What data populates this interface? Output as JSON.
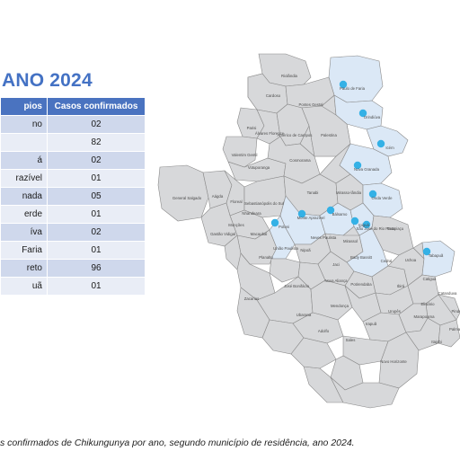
{
  "title": "ANO 2024",
  "table": {
    "headers": [
      "pios",
      "Casos confirmados"
    ],
    "rows": [
      {
        "municipio": "no",
        "casos": "02"
      },
      {
        "municipio": "",
        "casos": "82"
      },
      {
        "municipio": "á",
        "casos": "02"
      },
      {
        "municipio": "razível",
        "casos": "01"
      },
      {
        "municipio": "nada",
        "casos": "05"
      },
      {
        "municipio": "erde",
        "casos": "01"
      },
      {
        "municipio": "íva",
        "casos": "02"
      },
      {
        "municipio": "Faria",
        "casos": "01"
      },
      {
        "municipio": "reto",
        "casos": "96"
      },
      {
        "municipio": "uã",
        "casos": "01"
      }
    ]
  },
  "map": {
    "fill_color": "#d7d8da",
    "highlight_color": "#dbe8f6",
    "dot_color": "#34b1e6",
    "municipalities": [
      {
        "id": "riolandia",
        "label": "Riolândia",
        "highlighted": false
      },
      {
        "id": "paulo-de-faria",
        "label": "Paulo de Faria",
        "highlighted": true
      },
      {
        "id": "cardoso",
        "label": "Cardoso",
        "highlighted": false
      },
      {
        "id": "pontes-gestal",
        "label": "Pontes Gestal",
        "highlighted": false
      },
      {
        "id": "orindiuva",
        "label": "Orindiúva",
        "highlighted": true
      },
      {
        "id": "paris",
        "label": "Parisi",
        "highlighted": false
      },
      {
        "id": "alvares-florence",
        "label": "Álvares Florence",
        "highlighted": false
      },
      {
        "id": "americo-de-campos",
        "label": "Américo de Campos",
        "highlighted": false
      },
      {
        "id": "palestina",
        "label": "Palestina",
        "highlighted": false
      },
      {
        "id": "icem",
        "label": "Icém",
        "highlighted": true
      },
      {
        "id": "valentim-gentil",
        "label": "Valentim Gentil",
        "highlighted": false
      },
      {
        "id": "votuporanga",
        "label": "Votuporanga",
        "highlighted": false
      },
      {
        "id": "cosmorama",
        "label": "Cosmorama",
        "highlighted": false
      },
      {
        "id": "nova-granada",
        "label": "Nova Granada",
        "highlighted": true
      },
      {
        "id": "general-salgado",
        "label": "General Salgado",
        "highlighted": false
      },
      {
        "id": "auriflama",
        "label": "Aágda",
        "highlighted": false
      },
      {
        "id": "floreal",
        "label": "Floreal",
        "highlighted": false
      },
      {
        "id": "sebastianopolis",
        "label": "Sebastianópolis do Sul",
        "highlighted": false
      },
      {
        "id": "tanabi",
        "label": "Tanabi",
        "highlighted": false
      },
      {
        "id": "mirassolandia",
        "label": "Mirasso-lândia",
        "highlighted": false
      },
      {
        "id": "onda-verde",
        "label": "Onda Verde",
        "highlighted": true
      },
      {
        "id": "nhandeara",
        "label": "Nhandeara",
        "highlighted": false
      },
      {
        "id": "monte-aprazivel",
        "label": "Monte Aprazível",
        "highlighted": true
      },
      {
        "id": "balsamo",
        "label": "Bálsamo",
        "highlighted": true
      },
      {
        "id": "ipigua",
        "label": "Ipiguá",
        "highlighted": true
      },
      {
        "id": "guapiacu",
        "label": "Guapiaçu",
        "highlighted": false
      },
      {
        "id": "gastao-vidigal",
        "label": "Gastão Vidigal",
        "highlighted": false
      },
      {
        "id": "macaubal",
        "label": "Macaubal",
        "highlighted": false
      },
      {
        "id": "magda",
        "label": "Monções",
        "highlighted": false
      },
      {
        "id": "poloni",
        "label": "Poloni",
        "highlighted": true
      },
      {
        "id": "neves-paulista",
        "label": "Neves Paulista",
        "highlighted": false
      },
      {
        "id": "mirassol",
        "label": "Mirassol",
        "highlighted": false
      },
      {
        "id": "sao-jose-do-rio-preto",
        "label": "São José do Rio Preto",
        "highlighted": true
      },
      {
        "id": "uniao-paulista",
        "label": "União Paulista",
        "highlighted": false
      },
      {
        "id": "nipoa",
        "label": "Nipoã",
        "highlighted": false
      },
      {
        "id": "jaci",
        "label": "Jaci",
        "highlighted": false
      },
      {
        "id": "bady-bassitt",
        "label": "Bady Bassitt",
        "highlighted": false
      },
      {
        "id": "cedral",
        "label": "Cedral",
        "highlighted": false
      },
      {
        "id": "uchoa",
        "label": "Uchoa",
        "highlighted": false
      },
      {
        "id": "tabapua",
        "label": "Tabapuã",
        "highlighted": true
      },
      {
        "id": "planalto",
        "label": "Planalto",
        "highlighted": false
      },
      {
        "id": "jose-bonifacio",
        "label": "José Bonifácio",
        "highlighted": false
      },
      {
        "id": "nova-alianca",
        "label": "Nova Aliança",
        "highlighted": false
      },
      {
        "id": "potirendaba",
        "label": "Potirendaba",
        "highlighted": false
      },
      {
        "id": "ibira",
        "label": "Ibirá",
        "highlighted": false
      },
      {
        "id": "catigua",
        "label": "Catiguá",
        "highlighted": false
      },
      {
        "id": "catanduva",
        "label": "Catanduva",
        "highlighted": false
      },
      {
        "id": "zacarias",
        "label": "Zacarias",
        "highlighted": false
      },
      {
        "id": "ubarana",
        "label": "Ubarana",
        "highlighted": false
      },
      {
        "id": "mendonca",
        "label": "Mendonça",
        "highlighted": false
      },
      {
        "id": "urupes",
        "label": "Urupês",
        "highlighted": false
      },
      {
        "id": "elisiario",
        "label": "Elisiário",
        "highlighted": false
      },
      {
        "id": "irapua",
        "label": "Irapuã",
        "highlighted": false
      },
      {
        "id": "marapoama",
        "label": "Marapoama",
        "highlighted": false
      },
      {
        "id": "adolfo",
        "label": "Adolfo",
        "highlighted": false
      },
      {
        "id": "sales",
        "label": "Sales",
        "highlighted": false
      },
      {
        "id": "itajobi",
        "label": "Itajobi",
        "highlighted": false
      },
      {
        "id": "novo-horizonte",
        "label": "Novo Horizonte",
        "highlighted": false
      },
      {
        "id": "pindorama",
        "label": "Pindo",
        "highlighted": false
      },
      {
        "id": "palmares",
        "label": "Palmare",
        "highlighted": false
      }
    ]
  },
  "caption": "s confirmados de Chikungunya por ano, segundo município de residência, ano 2024."
}
